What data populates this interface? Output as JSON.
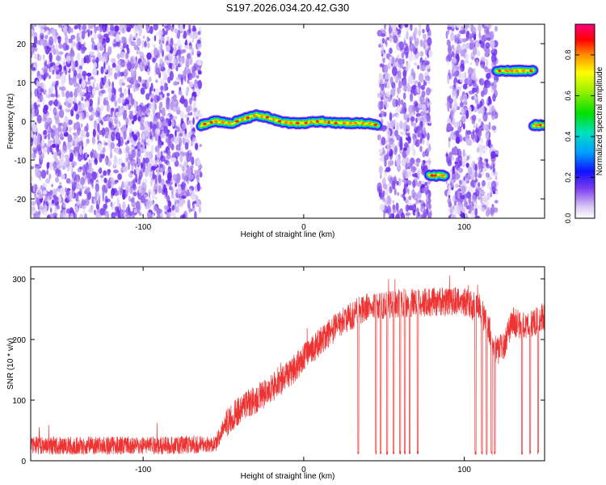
{
  "title": "S197.2026.034.20.42.G30",
  "chart_data": [
    {
      "type": "heatmap",
      "name": "spectrogram",
      "xlabel": "Height of straight line (km)",
      "ylabel": "Frequency (Hz)",
      "xlim": [
        -170,
        150
      ],
      "ylim": [
        -25,
        25
      ],
      "xticks": [
        -100,
        0,
        100
      ],
      "xtick_labels": [
        "-100",
        "0",
        "100"
      ],
      "yticks": [
        -20,
        -10,
        0,
        10,
        20
      ],
      "ytick_labels": [
        "-20",
        "-10",
        "0",
        "10",
        "20"
      ],
      "colorbar": {
        "label": "Normalized spectral amplitude",
        "range": [
          0.0,
          0.95
        ],
        "ticks": [
          0.0,
          0.2,
          0.4,
          0.6,
          0.8
        ],
        "tick_labels": [
          "0.0",
          "0.2",
          "0.4",
          "0.6",
          "0.8"
        ]
      },
      "noise_regions": [
        [
          -170,
          -64
        ],
        [
          47,
          79
        ],
        [
          89,
          120
        ]
      ],
      "signal_tracks": [
        {
          "x_start": -64,
          "x_end": 46,
          "freq_hz": [
            [
              -64,
              -1
            ],
            [
              -55,
              0
            ],
            [
              -45,
              -0.5
            ],
            [
              -38,
              0.5
            ],
            [
              -30,
              1.5
            ],
            [
              -22,
              1
            ],
            [
              -15,
              0
            ],
            [
              -8,
              -0.5
            ],
            [
              0,
              -0.5
            ],
            [
              10,
              0
            ],
            [
              20,
              -0.5
            ],
            [
              30,
              -0.5
            ],
            [
              40,
              -0.5
            ],
            [
              46,
              -1
            ]
          ]
        },
        {
          "x_start": 78,
          "x_end": 88,
          "freq_hz": [
            [
              78,
              -14
            ],
            [
              88,
              -14
            ]
          ]
        },
        {
          "x_start": 120,
          "x_end": 143,
          "freq_hz": [
            [
              120,
              13
            ],
            [
              130,
              13
            ],
            [
              143,
              13
            ]
          ]
        },
        {
          "x_start": 143,
          "x_end": 150,
          "freq_hz": [
            [
              143,
              -1
            ],
            [
              150,
              -1
            ]
          ]
        }
      ]
    },
    {
      "type": "line",
      "name": "snr",
      "xlabel": "Height of straight line (km)",
      "ylabel": "SNR (10 * v/v)",
      "xlim": [
        -170,
        150
      ],
      "ylim": [
        0,
        320
      ],
      "xticks": [
        -100,
        0,
        100
      ],
      "xtick_labels": [
        "-100",
        "0",
        "100"
      ],
      "yticks": [
        0,
        100,
        200,
        300
      ],
      "ytick_labels": [
        "0",
        "100",
        "200",
        "300"
      ],
      "color": "#ee3333",
      "baseline_envelope": [
        [
          -170,
          25
        ],
        [
          -130,
          25
        ],
        [
          -90,
          25
        ],
        [
          -55,
          28
        ],
        [
          -50,
          55
        ],
        [
          -40,
          85
        ],
        [
          -25,
          110
        ],
        [
          -10,
          140
        ],
        [
          0,
          170
        ],
        [
          10,
          195
        ],
        [
          20,
          220
        ],
        [
          30,
          240
        ],
        [
          40,
          255
        ],
        [
          60,
          260
        ],
        [
          80,
          262
        ],
        [
          100,
          262
        ],
        [
          110,
          250
        ],
        [
          115,
          220
        ],
        [
          120,
          180
        ],
        [
          125,
          190
        ],
        [
          130,
          230
        ],
        [
          140,
          220
        ],
        [
          150,
          240
        ]
      ],
      "noise_amplitude": 30,
      "dropouts_km": [
        34,
        45,
        48,
        52,
        56,
        60,
        63,
        66,
        71,
        107,
        111,
        114,
        117,
        119,
        136,
        141,
        146
      ],
      "dropout_level": 10
    }
  ]
}
